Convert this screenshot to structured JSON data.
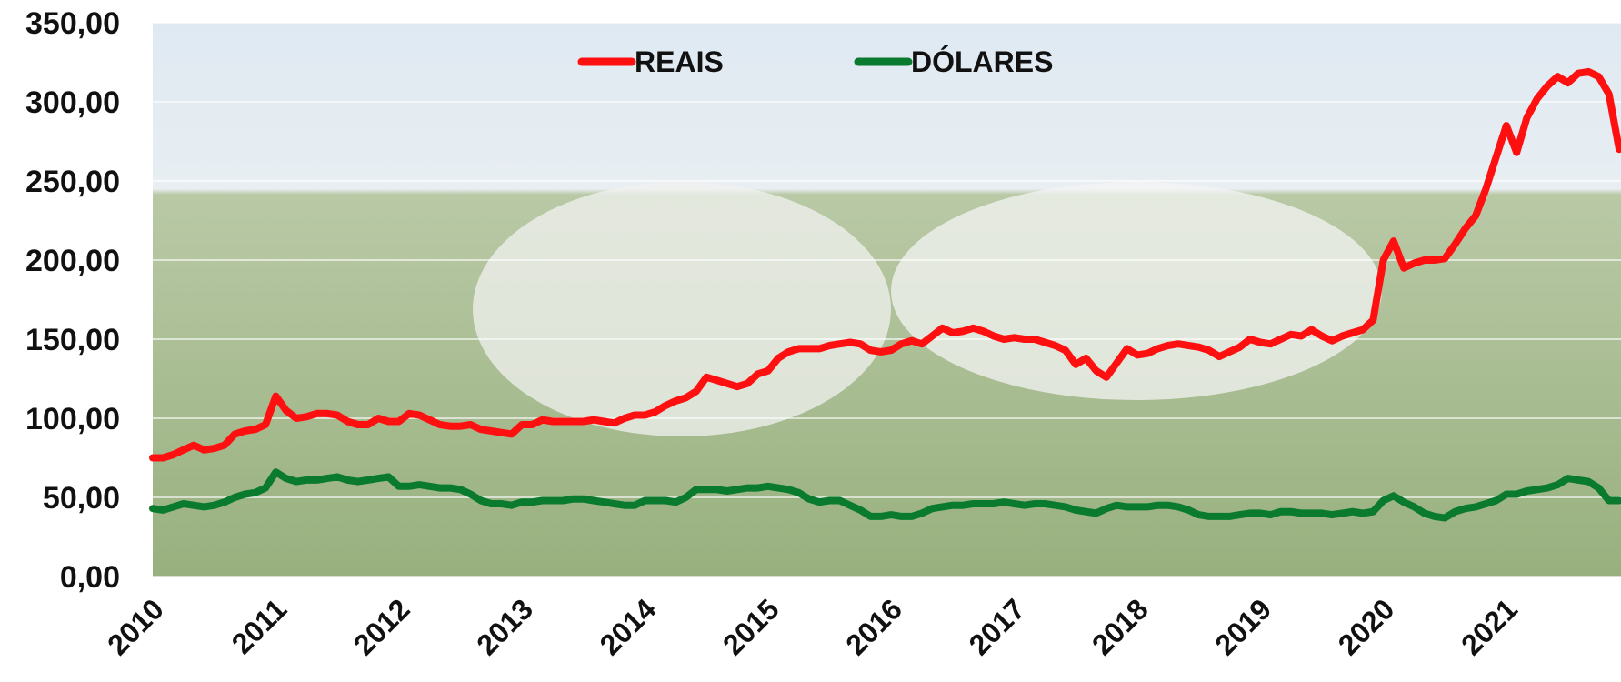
{
  "chart_data": {
    "type": "line",
    "categories": [
      "2010",
      null,
      null,
      null,
      null,
      null,
      null,
      null,
      null,
      null,
      null,
      null,
      "2011",
      null,
      null,
      null,
      null,
      null,
      null,
      null,
      null,
      null,
      null,
      null,
      "2012",
      null,
      null,
      null,
      null,
      null,
      null,
      null,
      null,
      null,
      null,
      null,
      "2013",
      null,
      null,
      null,
      null,
      null,
      null,
      null,
      null,
      null,
      null,
      null,
      "2014",
      null,
      null,
      null,
      null,
      null,
      null,
      null,
      null,
      null,
      null,
      null,
      "2015",
      null,
      null,
      null,
      null,
      null,
      null,
      null,
      null,
      null,
      null,
      null,
      "2016",
      null,
      null,
      null,
      null,
      null,
      null,
      null,
      null,
      null,
      null,
      null,
      "2017",
      null,
      null,
      null,
      null,
      null,
      null,
      null,
      null,
      null,
      null,
      null,
      "2018",
      null,
      null,
      null,
      null,
      null,
      null,
      null,
      null,
      null,
      null,
      null,
      "2019",
      null,
      null,
      null,
      null,
      null,
      null,
      null,
      null,
      null,
      null,
      null,
      "2020",
      null,
      null,
      null,
      null,
      null,
      null,
      null,
      null,
      null,
      null,
      null,
      "2021",
      null,
      null,
      null,
      null,
      null,
      null,
      null,
      null,
      null,
      null,
      null
    ],
    "series": [
      {
        "name": "REAIS",
        "color": "#ff1010",
        "values": [
          75,
          75,
          77,
          80,
          83,
          80,
          81,
          83,
          90,
          92,
          93,
          96,
          114,
          105,
          100,
          101,
          103,
          103,
          102,
          98,
          96,
          96,
          100,
          98,
          98,
          103,
          102,
          99,
          96,
          95,
          95,
          96,
          93,
          92,
          91,
          90,
          96,
          96,
          99,
          98,
          98,
          98,
          98,
          99,
          98,
          97,
          100,
          102,
          102,
          104,
          108,
          111,
          113,
          117,
          126,
          124,
          122,
          120,
          122,
          128,
          130,
          138,
          142,
          144,
          144,
          144,
          146,
          147,
          148,
          147,
          143,
          142,
          143,
          147,
          149,
          147,
          152,
          157,
          154,
          155,
          157,
          155,
          152,
          150,
          151,
          150,
          150,
          148,
          146,
          143,
          134,
          138,
          130,
          126,
          135,
          144,
          140,
          141,
          144,
          146,
          147,
          146,
          145,
          143,
          139,
          142,
          145,
          150,
          148,
          147,
          150,
          153,
          152,
          156,
          152,
          149,
          152,
          154,
          156,
          162,
          200,
          212,
          195,
          198,
          200,
          200,
          201,
          210,
          220,
          228,
          245,
          265,
          285,
          268,
          290,
          302,
          310,
          316,
          312,
          318,
          319,
          316,
          305,
          270
        ]
      },
      {
        "name": "DÓLARES",
        "color": "#0a7a2e",
        "values": [
          43,
          42,
          44,
          46,
          45,
          44,
          45,
          47,
          50,
          52,
          53,
          56,
          66,
          62,
          60,
          61,
          61,
          62,
          63,
          61,
          60,
          61,
          62,
          63,
          57,
          57,
          58,
          57,
          56,
          56,
          55,
          52,
          48,
          46,
          46,
          45,
          47,
          47,
          48,
          48,
          48,
          49,
          49,
          48,
          47,
          46,
          45,
          45,
          48,
          48,
          48,
          47,
          50,
          55,
          55,
          55,
          54,
          55,
          56,
          56,
          57,
          56,
          55,
          53,
          49,
          47,
          48,
          48,
          45,
          42,
          38,
          38,
          39,
          38,
          38,
          40,
          43,
          44,
          45,
          45,
          46,
          46,
          46,
          47,
          46,
          45,
          46,
          46,
          45,
          44,
          42,
          41,
          40,
          43,
          45,
          44,
          44,
          44,
          45,
          45,
          44,
          42,
          39,
          38,
          38,
          38,
          39,
          40,
          40,
          39,
          41,
          41,
          40,
          40,
          40,
          39,
          40,
          41,
          40,
          41,
          48,
          51,
          47,
          44,
          40,
          38,
          37,
          41,
          43,
          44,
          46,
          48,
          52,
          52,
          54,
          55,
          56,
          58,
          62,
          61,
          60,
          56,
          48,
          48
        ]
      }
    ],
    "ylim": [
      0,
      350
    ],
    "yticks": [
      {
        "value": 0,
        "label": "0,00"
      },
      {
        "value": 50,
        "label": "50,00"
      },
      {
        "value": 100,
        "label": "100,00"
      },
      {
        "value": 150,
        "label": "150,00"
      },
      {
        "value": 200,
        "label": "200,00"
      },
      {
        "value": 250,
        "label": "250,00"
      },
      {
        "value": 300,
        "label": "300,00"
      },
      {
        "value": 350,
        "label": "350,00"
      }
    ],
    "grid": true
  }
}
